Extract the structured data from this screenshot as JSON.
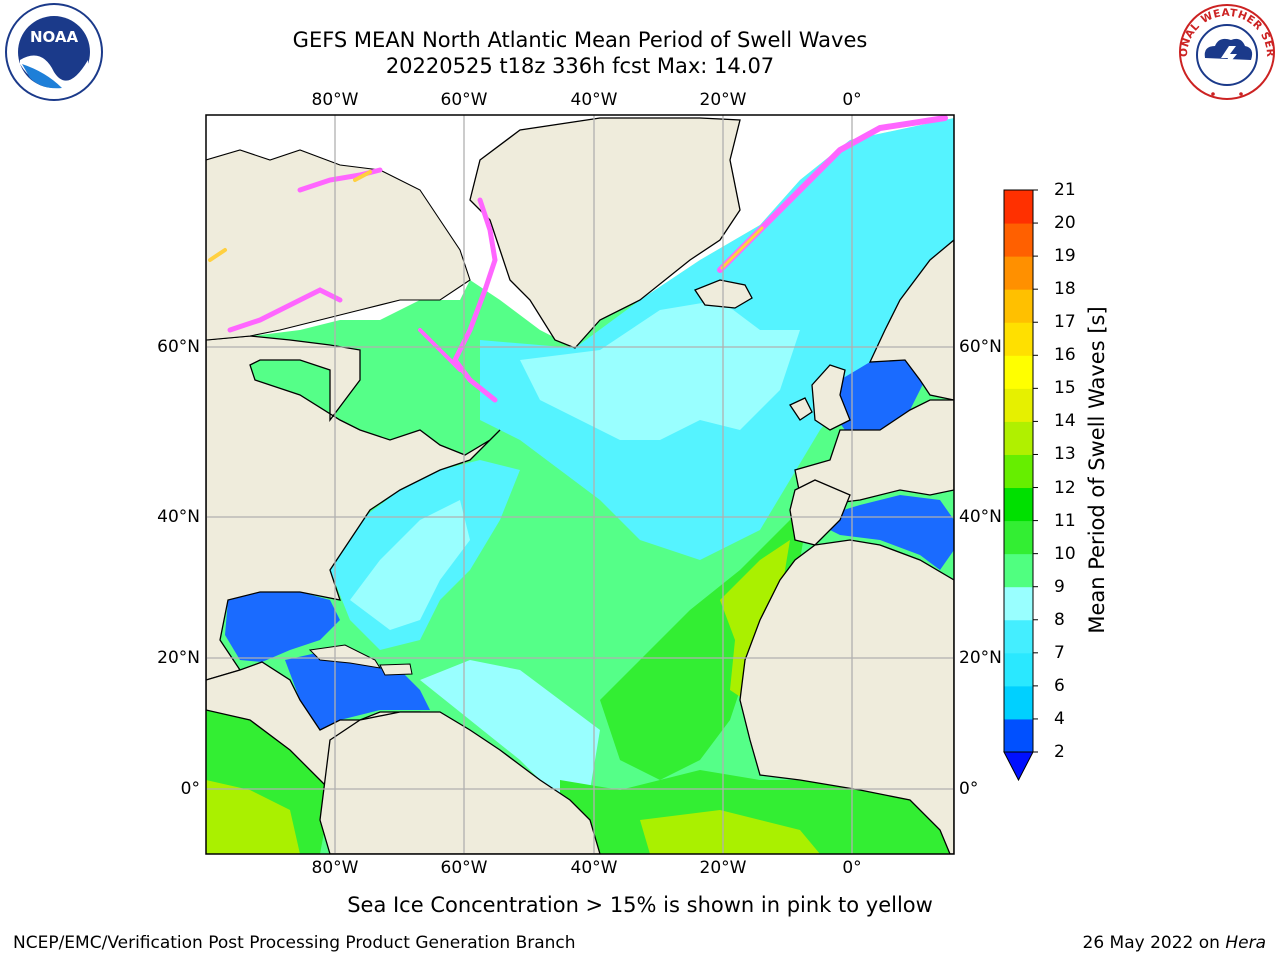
{
  "title": {
    "line1": "GEFS MEAN North Atlantic Mean Period of Swell Waves",
    "line2": "20220525 t18z 336h fcst   Max: 14.07"
  },
  "map": {
    "lon_labels": [
      "80°W",
      "60°W",
      "40°W",
      "20°W",
      "0°"
    ],
    "lat_labels": [
      "60°N",
      "40°N",
      "20°N",
      "0°"
    ],
    "lon_range": [
      -100,
      15
    ],
    "lat_range": [
      -8,
      80
    ],
    "colors": {
      "land": "#efecdc",
      "ice_region": "#ffffff",
      "grid": "#b0b0b0",
      "ice_pink": "#ff66ff",
      "ice_yellow": "#ffd040"
    }
  },
  "colorbar": {
    "title": "Mean Period of Swell Waves [s]",
    "tick_labels": [
      "2",
      "4",
      "6",
      "7",
      "8",
      "9",
      "10",
      "11",
      "12",
      "13",
      "14",
      "15",
      "16",
      "17",
      "18",
      "19",
      "20",
      "21"
    ],
    "colors": [
      "#0050ff",
      "#00d0ff",
      "#2ae8ff",
      "#44eeff",
      "#99ffff",
      "#50ff80",
      "#33ee33",
      "#00e000",
      "#66ee00",
      "#b0f000",
      "#e6f000",
      "#ffff00",
      "#ffe000",
      "#ffc000",
      "#ff9000",
      "#ff6000",
      "#ff3000",
      "#ff0000"
    ],
    "underflow_color": "#0010ff"
  },
  "ice_note": "Sea Ice Concentration > 15% is shown in pink to yellow",
  "footer": {
    "left": "NCEP/EMC/Verification Post Processing Product Generation Branch",
    "right_date": "26 May 2022 on",
    "right_machine": "Hera"
  },
  "logos": {
    "noaa": {
      "icon": "noaa-logo-icon",
      "text": "NOAA"
    },
    "nws": {
      "icon": "nws-logo-icon",
      "text": "NATIONAL WEATHER SERVICE"
    }
  }
}
